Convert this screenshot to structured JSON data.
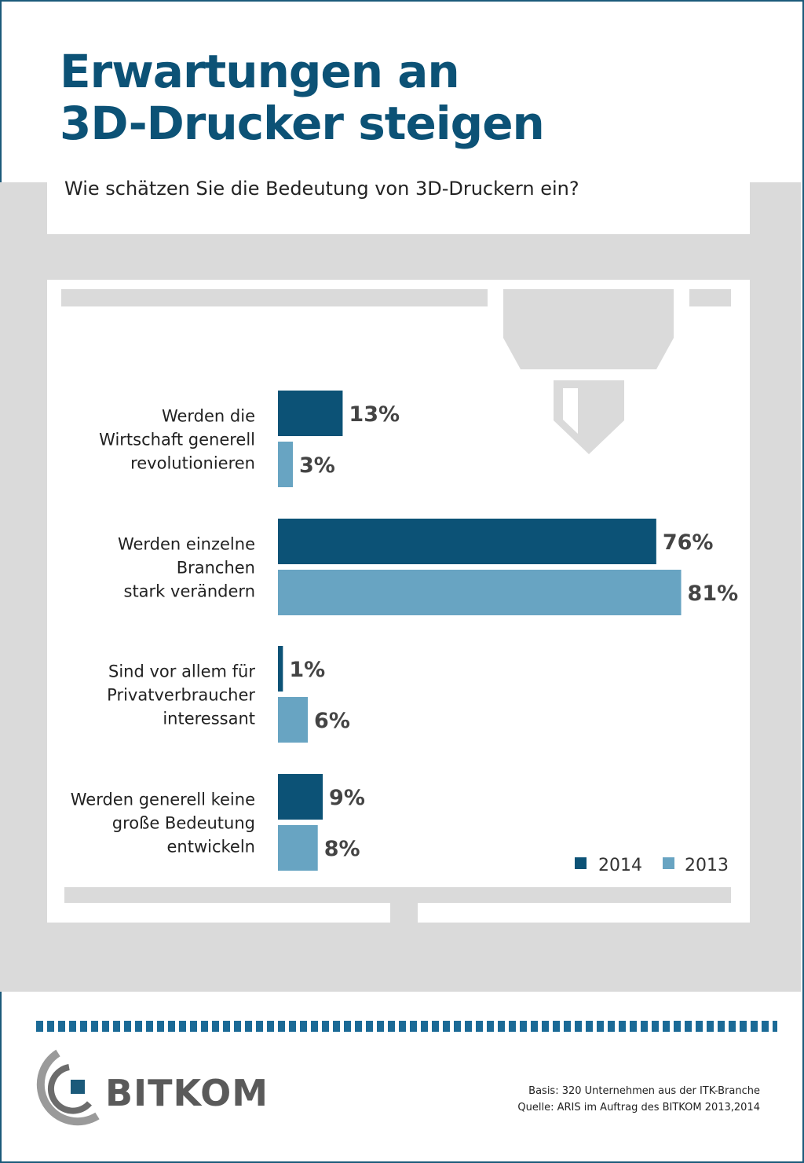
{
  "header": {
    "title_line1": "Erwartungen an",
    "title_line2": "3D-Drucker steigen",
    "subtitle": "Wie schätzen Sie die Bedeutung von 3D-Druckern ein?"
  },
  "colors": {
    "series_2014": "#0c5276",
    "series_2013": "#68a4c2",
    "frame": "#1b5a7a",
    "printer_gray": "#dadada"
  },
  "chart_data": {
    "type": "bar",
    "orientation": "horizontal",
    "categories": [
      [
        "Werden die",
        "Wirtschaft generell",
        "revolutionieren"
      ],
      [
        "Werden einzelne",
        "Branchen",
        "stark verändern"
      ],
      [
        "Sind vor allem für",
        "Privatverbraucher",
        "interessant"
      ],
      [
        "Werden generell keine",
        "große Bedeutung",
        "entwickeln"
      ]
    ],
    "series": [
      {
        "name": "2014",
        "values": [
          13,
          76,
          1,
          9
        ],
        "labels": [
          "13%",
          "76%",
          "1%",
          "9%"
        ]
      },
      {
        "name": "2013",
        "values": [
          3,
          81,
          6,
          8
        ],
        "labels": [
          "3%",
          "81%",
          "6%",
          "8%"
        ]
      }
    ],
    "unit": "%",
    "xlim": [
      0,
      100
    ],
    "grid": false,
    "legend_position": "bottom-right"
  },
  "footer": {
    "logo_text": "BITKOM",
    "basis": "Basis: 320 Unternehmen aus der ITK-Branche",
    "quelle": "Quelle: ARIS im Auftrag des BITKOM 2013,2014"
  }
}
